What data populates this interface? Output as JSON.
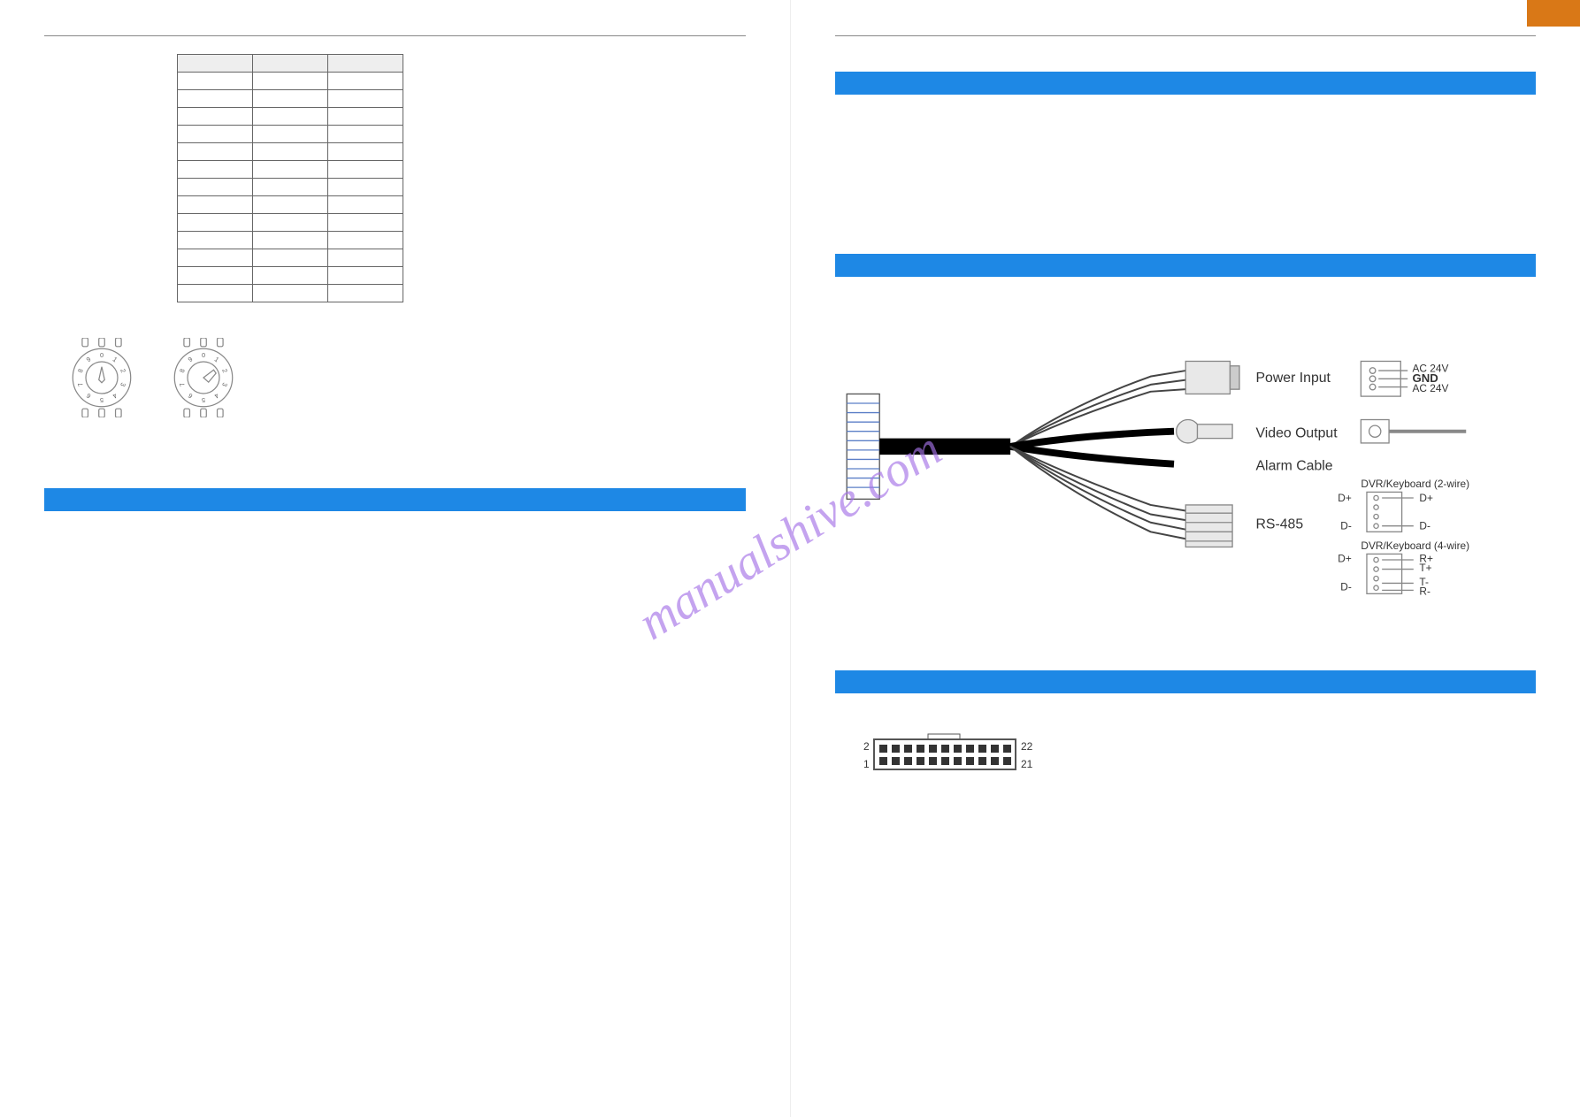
{
  "watermark": "manualshive.com",
  "left_page": {
    "protocol_table": {
      "columns": [
        "",
        "",
        ""
      ],
      "rows": [
        [
          "",
          "",
          ""
        ],
        [
          "",
          "",
          ""
        ],
        [
          "",
          "",
          ""
        ],
        [
          "",
          "",
          ""
        ],
        [
          "",
          "",
          ""
        ],
        [
          "",
          "",
          ""
        ],
        [
          "",
          "",
          ""
        ],
        [
          "",
          "",
          ""
        ],
        [
          "",
          "",
          ""
        ],
        [
          "",
          "",
          ""
        ],
        [
          "",
          "",
          ""
        ],
        [
          "",
          "",
          ""
        ],
        [
          "",
          "",
          ""
        ]
      ]
    },
    "dial_numbers": [
      "0",
      "1",
      "2",
      "3",
      "4",
      "5",
      "6",
      "7",
      "8",
      "9"
    ]
  },
  "right_page": {
    "cable_labels": {
      "power_input": "Power Input",
      "video_output": "Video Output",
      "alarm_cable": "Alarm Cable",
      "rs485": "RS-485"
    },
    "power_pins": {
      "ac24v_1": "AC 24V",
      "gnd": "GND",
      "ac24v_2": "AC 24V"
    },
    "rs485_2wire": {
      "title": "DVR/Keyboard (2-wire)",
      "d_plus_left": "D+",
      "d_plus_right": "D+",
      "d_minus_left": "D-",
      "d_minus_right": "D-"
    },
    "rs485_4wire": {
      "title": "DVR/Keyboard (4-wire)",
      "d_plus": "D+",
      "r_plus": "R+",
      "t_plus": "T+",
      "d_minus": "D-",
      "t_minus": "T-",
      "r_minus": "R-"
    },
    "connector_22": {
      "pin_1": "1",
      "pin_2": "2",
      "pin_21": "21",
      "pin_22": "22"
    }
  },
  "colors": {
    "blue_bar": "#1e88e5",
    "orange_tab": "#d97817",
    "watermark": "#a673e8"
  }
}
